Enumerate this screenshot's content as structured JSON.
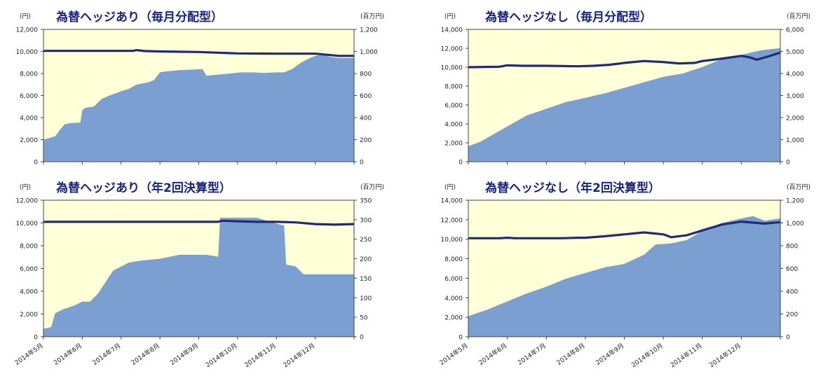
{
  "chart_data": [
    {
      "type": "area",
      "title": "為替ヘッジあり（毎月分配型）",
      "y_left_unit": "(円)",
      "y_right_unit": "(百万円)",
      "y_left_ticks": [
        "12,000",
        "10,000",
        "8,000",
        "6,000",
        "4,000",
        "2,000",
        "0"
      ],
      "y_right_ticks": [
        "1,200",
        "1,000",
        "800",
        "600",
        "400",
        "200",
        "0"
      ],
      "ylim_left": [
        0,
        12000
      ],
      "ylim_right": [
        0,
        1200
      ],
      "x_range": [
        0,
        8
      ],
      "x_labels": [],
      "colors": {
        "area": "#7b9fd0",
        "line": "#1f2a78",
        "plot_bg": "#ffffd8"
      },
      "series": [
        {
          "axis": "right",
          "kind": "area",
          "x": [
            0,
            0.3,
            0.45,
            0.55,
            0.7,
            0.95,
            1.0,
            1.1,
            1.3,
            1.5,
            1.7,
            2.0,
            2.2,
            2.4,
            2.7,
            2.85,
            3.0,
            3.2,
            3.5,
            3.8,
            4.1,
            4.2,
            4.5,
            4.8,
            5.1,
            5.4,
            5.7,
            6.0,
            6.2,
            6.4,
            6.6,
            6.8,
            7.0,
            7.2,
            7.4,
            7.6,
            8.0
          ],
          "y": [
            200,
            230,
            300,
            340,
            350,
            355,
            470,
            490,
            500,
            570,
            600,
            640,
            660,
            700,
            720,
            740,
            810,
            820,
            830,
            835,
            840,
            780,
            790,
            800,
            810,
            810,
            805,
            810,
            810,
            840,
            890,
            930,
            960,
            970,
            950,
            940,
            940
          ]
        },
        {
          "axis": "left",
          "kind": "line",
          "x": [
            0,
            1,
            2,
            2.3,
            2.4,
            2.6,
            3,
            4,
            4.8,
            5,
            6,
            7,
            7.3,
            7.6,
            8
          ],
          "y": [
            10050,
            10050,
            10050,
            10050,
            10120,
            10040,
            10000,
            9950,
            9850,
            9820,
            9800,
            9800,
            9700,
            9600,
            9600
          ]
        }
      ]
    },
    {
      "type": "area",
      "title": "為替ヘッジなし（毎月分配型）",
      "y_left_unit": "(円)",
      "y_right_unit": "(百万円)",
      "y_left_ticks": [
        "14,000",
        "12,000",
        "10,000",
        "8,000",
        "6,000",
        "4,000",
        "2,000",
        "0"
      ],
      "y_right_ticks": [
        "6,000",
        "5,000",
        "4,000",
        "3,000",
        "2,000",
        "1,000",
        "0"
      ],
      "ylim_left": [
        0,
        14000
      ],
      "ylim_right": [
        0,
        6000
      ],
      "x_range": [
        0,
        8
      ],
      "x_labels": [],
      "colors": {
        "area": "#7b9fd0",
        "line": "#1f2a78",
        "plot_bg": "#ffffd8"
      },
      "series": [
        {
          "axis": "right",
          "kind": "area",
          "x": [
            0,
            0.3,
            0.6,
            1,
            1.5,
            2,
            2.5,
            3,
            3.5,
            4,
            4.5,
            5,
            5.5,
            6,
            6.5,
            7,
            7.5,
            8
          ],
          "y": [
            700,
            900,
            1200,
            1600,
            2100,
            2400,
            2700,
            2900,
            3100,
            3350,
            3600,
            3850,
            4000,
            4300,
            4650,
            4850,
            5050,
            5150
          ]
        },
        {
          "axis": "left",
          "kind": "line",
          "x": [
            0,
            0.8,
            1,
            1.4,
            2,
            2.8,
            3.2,
            3.6,
            4,
            4.5,
            5,
            5.4,
            5.8,
            6,
            6.4,
            7,
            7.2,
            7.4,
            7.7,
            8
          ],
          "y": [
            10000,
            10050,
            10200,
            10150,
            10150,
            10100,
            10150,
            10250,
            10450,
            10650,
            10550,
            10400,
            10450,
            10650,
            10850,
            11200,
            11050,
            10800,
            11150,
            11550
          ]
        }
      ]
    },
    {
      "type": "area",
      "title": "為替ヘッジあり（年2回決算型）",
      "y_left_unit": "(円)",
      "y_right_unit": "(百万円)",
      "y_left_ticks": [
        "12,000",
        "10,000",
        "8,000",
        "6,000",
        "4,000",
        "2,000",
        "0"
      ],
      "y_right_ticks": [
        "350",
        "300",
        "250",
        "200",
        "150",
        "100",
        "50",
        "0"
      ],
      "ylim_left": [
        0,
        12000
      ],
      "ylim_right": [
        0,
        350
      ],
      "x_range": [
        0,
        8
      ],
      "x_labels": [
        "2014年5月",
        "2014年6月",
        "2014年7月",
        "2014年8月",
        "2014年9月",
        "2014年10月",
        "2014年11月",
        "2014年12月"
      ],
      "colors": {
        "area": "#7b9fd0",
        "line": "#1f2a78",
        "plot_bg": "#ffffd8"
      },
      "series": [
        {
          "axis": "right",
          "kind": "area",
          "x": [
            0,
            0.2,
            0.3,
            0.5,
            0.8,
            1,
            1.2,
            1.4,
            1.6,
            1.8,
            2.0,
            2.2,
            2.5,
            3.0,
            3.5,
            4.2,
            4.5,
            4.55,
            5.0,
            5.5,
            6.0,
            6.2,
            6.25,
            6.5,
            6.7,
            7.0,
            7.4,
            8.0
          ],
          "y": [
            20,
            25,
            60,
            70,
            80,
            90,
            90,
            110,
            140,
            170,
            180,
            190,
            195,
            200,
            210,
            210,
            205,
            305,
            305,
            305,
            290,
            285,
            185,
            180,
            160,
            160,
            160,
            160
          ]
        },
        {
          "axis": "left",
          "kind": "line",
          "x": [
            0,
            1,
            2,
            3,
            4,
            4.5,
            4.6,
            5.0,
            5.5,
            6.0,
            6.5,
            7,
            7.5,
            8
          ],
          "y": [
            10100,
            10100,
            10100,
            10100,
            10100,
            10100,
            10200,
            10150,
            10100,
            10100,
            10050,
            9900,
            9850,
            9900
          ]
        }
      ]
    },
    {
      "type": "area",
      "title": "為替ヘッジなし（年2回決算型）",
      "y_left_unit": "(円)",
      "y_right_unit": "(百万円)",
      "y_left_ticks": [
        "14,000",
        "12,000",
        "10,000",
        "8,000",
        "6,000",
        "4,000",
        "2,000",
        "0"
      ],
      "y_right_ticks": [
        "1,200",
        "1,000",
        "800",
        "600",
        "400",
        "200",
        "0"
      ],
      "ylim_left": [
        0,
        14000
      ],
      "ylim_right": [
        0,
        1200
      ],
      "x_range": [
        0,
        8
      ],
      "x_labels": [
        "2014年5月",
        "2014年6月",
        "2014年7月",
        "2014年8月",
        "2014年9月",
        "2014年10月",
        "2014年11月",
        "2014年12月"
      ],
      "colors": {
        "area": "#7b9fd0",
        "line": "#1f2a78",
        "plot_bg": "#ffffd8"
      },
      "series": [
        {
          "axis": "right",
          "kind": "area",
          "x": [
            0,
            0.5,
            1,
            1.5,
            2,
            2.5,
            3,
            3.5,
            4,
            4.5,
            4.8,
            5.2,
            5.6,
            6,
            6.5,
            7,
            7.3,
            7.6,
            8
          ],
          "y": [
            180,
            240,
            310,
            380,
            440,
            510,
            560,
            610,
            640,
            720,
            810,
            820,
            850,
            930,
            1000,
            1040,
            1060,
            1020,
            1040
          ]
        },
        {
          "axis": "left",
          "kind": "line",
          "x": [
            0,
            0.8,
            1,
            1.2,
            1.5,
            2,
            2.4,
            2.8,
            3,
            3.5,
            4,
            4.5,
            5,
            5.2,
            5.6,
            6,
            6.5,
            7,
            7.3,
            7.6,
            8
          ],
          "y": [
            10100,
            10100,
            10150,
            10100,
            10100,
            10100,
            10100,
            10150,
            10150,
            10300,
            10500,
            10700,
            10500,
            10200,
            10400,
            10900,
            11500,
            11800,
            11700,
            11600,
            11750
          ]
        }
      ]
    }
  ]
}
